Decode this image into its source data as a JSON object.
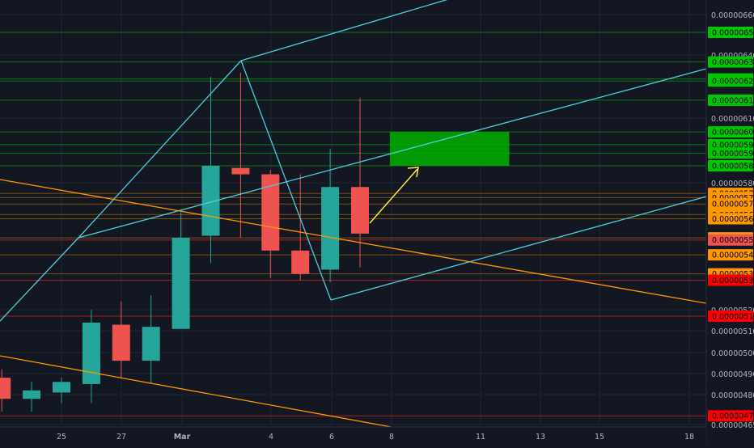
{
  "chart_data": {
    "type": "candlestick",
    "x_ticks": [
      "25",
      "27",
      "Mar",
      "4",
      "6",
      "8",
      "11",
      "13",
      "15",
      "18"
    ],
    "y_ticks": [
      "0.00000660",
      "0.00000640",
      "0.00000610",
      "0.00000580",
      "0.00000520",
      "0.00000510",
      "0.00000500",
      "0.00000490",
      "0.00000480",
      "0.00000465"
    ],
    "candles": [
      {
        "date": "Feb 23",
        "open": 4.88e-06,
        "high": 4.92e-06,
        "low": 4.72e-06,
        "close": 4.78e-06
      },
      {
        "date": "Feb 24",
        "open": 4.78e-06,
        "high": 4.86e-06,
        "low": 4.72e-06,
        "close": 4.82e-06
      },
      {
        "date": "Feb 25",
        "open": 4.81e-06,
        "high": 4.88e-06,
        "low": 4.76e-06,
        "close": 4.86e-06
      },
      {
        "date": "Feb 26",
        "open": 4.85e-06,
        "high": 5.2e-06,
        "low": 4.76e-06,
        "close": 5.14e-06
      },
      {
        "date": "Feb 27",
        "open": 5.13e-06,
        "high": 5.24e-06,
        "low": 4.88e-06,
        "close": 4.96e-06
      },
      {
        "date": "Feb 28",
        "open": 4.96e-06,
        "high": 5.27e-06,
        "low": 4.85e-06,
        "close": 5.12e-06
      },
      {
        "date": "Mar 1",
        "open": 5.11e-06,
        "high": 5.66e-06,
        "low": 5.11e-06,
        "close": 5.54e-06
      },
      {
        "date": "Mar 2",
        "open": 5.55e-06,
        "high": 6.3e-06,
        "low": 5.42e-06,
        "close": 5.88e-06
      },
      {
        "date": "Mar 3",
        "open": 5.87e-06,
        "high": 6.32e-06,
        "low": 5.54e-06,
        "close": 5.84e-06
      },
      {
        "date": "Mar 4",
        "open": 5.84e-06,
        "high": 5.86e-06,
        "low": 5.35e-06,
        "close": 5.48e-06
      },
      {
        "date": "Mar 5",
        "open": 5.48e-06,
        "high": 5.84e-06,
        "low": 5.34e-06,
        "close": 5.37e-06
      },
      {
        "date": "Mar 6",
        "open": 5.39e-06,
        "high": 5.96e-06,
        "low": 5.33e-06,
        "close": 5.78e-06
      },
      {
        "date": "Mar 7",
        "open": 5.78e-06,
        "high": 6.2e-06,
        "low": 5.4e-06,
        "close": 5.56e-06
      }
    ],
    "price_labels": [
      {
        "text": "0.00000651",
        "value": 6.51e-06,
        "bg": "#00c800"
      },
      {
        "text": "0.00000637",
        "value": 6.37e-06,
        "bg": "#00c800"
      },
      {
        "text": "0.00000629",
        "value": 6.29e-06,
        "bg": "#00c800"
      },
      {
        "text": "0.00000628",
        "value": 6.28e-06,
        "bg": "#00c800"
      },
      {
        "text": "0.00000619",
        "value": 6.19e-06,
        "bg": "#00c800"
      },
      {
        "text": "0.00000604",
        "value": 6.04e-06,
        "bg": "#00c800"
      },
      {
        "text": "0.00000598",
        "value": 5.98e-06,
        "bg": "#00c800"
      },
      {
        "text": "0.00000594",
        "value": 5.94e-06,
        "bg": "#00c800"
      },
      {
        "text": "0.00000588",
        "value": 5.88e-06,
        "bg": "#00c800"
      },
      {
        "text": "0.00000575",
        "value": 5.75e-06,
        "bg": "#ff9800"
      },
      {
        "text": "0.00000573",
        "value": 5.73e-06,
        "bg": "#ff9800"
      },
      {
        "text": "0.00000570",
        "value": 5.7e-06,
        "bg": "#ff9800"
      },
      {
        "text": "0.00000565",
        "value": 5.65e-06,
        "bg": "#ff9800"
      },
      {
        "text": "0.00000563",
        "value": 5.63e-06,
        "bg": "#ff9800"
      },
      {
        "text": "0.00000554",
        "value": 5.54e-06,
        "bg": "#ff9800"
      },
      {
        "text": "0.00000553",
        "value": 5.53e-06,
        "bg": "#ef5350"
      },
      {
        "text": "0.00000546",
        "value": 5.46e-06,
        "bg": "#ff9800"
      },
      {
        "text": "0.00000537",
        "value": 5.37e-06,
        "bg": "#ff9800"
      },
      {
        "text": "0.00000534",
        "value": 5.34e-06,
        "bg": "#ff0000"
      },
      {
        "text": "0.00000517",
        "value": 5.17e-06,
        "bg": "#ff0000"
      },
      {
        "text": "0.00000470",
        "value": 4.7e-06,
        "bg": "#ff0000"
      }
    ],
    "target_zone": {
      "from": "Mar 8",
      "to": "Mar 12",
      "low": 5.88e-06,
      "high": 6.04e-06
    },
    "colors": {
      "up": "#26a69a",
      "down": "#ef5350",
      "background": "#131722",
      "channel": "#4dd0e1",
      "trend": "#ff9800",
      "arrow": "#ffeb3b",
      "zone": "#00b000"
    }
  }
}
